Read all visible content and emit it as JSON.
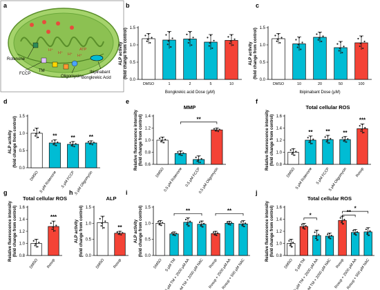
{
  "figure": {
    "panel_a": {
      "letter": "a",
      "labels": {
        "rotenone": "Rotenone",
        "fccp": "FCCP",
        "tm": "TM",
        "oligomycin": "Oligomycin",
        "ibipinabant": "Ibipinabant",
        "bongkrekic": "Bongkrekic Acid",
        "h1": "H⁺",
        "h2": "H⁺",
        "h3": "H⁺",
        "h4": "H⁺",
        "atp": "ATP"
      }
    }
  },
  "colors": {
    "cyan": "#00bcd4",
    "red": "#f44336",
    "white": "#ffffff",
    "organelle": "#8cc152",
    "organelle_dark": "#5a8f2a"
  },
  "chart_data": [
    {
      "id": "b",
      "letter": "b",
      "type": "bar",
      "title": "",
      "ylabel": [
        "ALP activity",
        "(fold change from control)"
      ],
      "xlabel": "Bongkrekic acid Dose (μM)",
      "ylim": [
        0,
        1.5
      ],
      "yticks": [
        0.0,
        0.5,
        1.0,
        1.5
      ],
      "tick_decimals": 1,
      "categories": [
        "DMSO",
        "1",
        "2",
        "5",
        "10"
      ],
      "values": [
        1.18,
        1.14,
        1.17,
        1.08,
        1.13
      ],
      "errors": [
        0.15,
        0.25,
        0.22,
        0.22,
        0.17
      ],
      "colors": [
        "white",
        "cyan",
        "cyan",
        "cyan",
        "red"
      ],
      "rotate_labels": false,
      "significance": [
        "",
        "",
        "",
        "",
        ""
      ],
      "brackets": []
    },
    {
      "id": "c",
      "letter": "c",
      "type": "bar",
      "title": "",
      "ylabel": [
        "ALP activity",
        "(fold change from control)"
      ],
      "xlabel": "Ibipinabant Dose (μM)",
      "ylim": [
        0,
        1.5
      ],
      "yticks": [
        0.0,
        0.5,
        1.0,
        1.5
      ],
      "tick_decimals": 1,
      "categories": [
        "DMSO",
        "10",
        "20",
        "50",
        "100"
      ],
      "values": [
        1.18,
        1.03,
        1.22,
        0.92,
        1.06
      ],
      "errors": [
        0.15,
        0.2,
        0.15,
        0.18,
        0.2
      ],
      "colors": [
        "white",
        "cyan",
        "cyan",
        "cyan",
        "red"
      ],
      "rotate_labels": false,
      "significance": [
        "",
        "",
        "",
        "",
        ""
      ],
      "brackets": []
    },
    {
      "id": "d",
      "letter": "d",
      "type": "bar",
      "title": "",
      "ylabel": [
        "ALP activity",
        "(fold change from control)"
      ],
      "xlabel": "",
      "ylim": [
        0,
        1.5
      ],
      "yticks": [
        0.0,
        0.5,
        1.0,
        1.5
      ],
      "tick_decimals": 1,
      "categories": [
        "DMSO",
        ".5 μM Rotenone",
        ".5 μM FCCP",
        ".5 μM Oligomycin"
      ],
      "values": [
        1.0,
        0.72,
        0.68,
        0.72
      ],
      "errors": [
        0.15,
        0.09,
        0.08,
        0.06
      ],
      "colors": [
        "white",
        "cyan",
        "cyan",
        "cyan"
      ],
      "rotate_labels": true,
      "significance": [
        "",
        "**",
        "**",
        "**"
      ],
      "brackets": []
    },
    {
      "id": "e",
      "letter": "e",
      "type": "bar",
      "title": "MMP",
      "ylabel": [
        "Relative fluorescence intensity",
        "(fold change from control)"
      ],
      "xlabel": "",
      "ylim": [
        0.6,
        1.4
      ],
      "yticks": [
        0.6,
        0.8,
        1.0,
        1.2,
        1.4
      ],
      "tick_decimals": 1,
      "categories": [
        "DMSO",
        "0.5 μM Rotenone",
        "0.5 μM FCCP",
        "0.5 μM Oligomycin"
      ],
      "values": [
        1.0,
        0.78,
        0.68,
        1.17
      ],
      "errors": [
        0.05,
        0.04,
        0.06,
        0.03
      ],
      "colors": [
        "white",
        "cyan",
        "cyan",
        "red"
      ],
      "rotate_labels": true,
      "significance": [
        "",
        "",
        "",
        ""
      ],
      "brackets": [
        {
          "from": 1,
          "to": 3,
          "level": 1.3,
          "label": "**"
        }
      ]
    },
    {
      "id": "f",
      "letter": "f",
      "type": "bar",
      "title": "Total cellular ROS",
      "ylabel": [
        "Relative fluorescence intensity",
        "(fold change from control)"
      ],
      "xlabel": "",
      "ylim": [
        0.8,
        1.6
      ],
      "yticks": [
        0.8,
        1.0,
        1.2,
        1.4,
        1.6
      ],
      "tick_decimals": 1,
      "categories": [
        "DMSO",
        "5 μM Rotenone",
        "5 μM FCCP",
        "5 μM Oligomycin",
        "Rosup"
      ],
      "values": [
        1.0,
        1.2,
        1.21,
        1.21,
        1.39
      ],
      "errors": [
        0.06,
        0.07,
        0.07,
        0.05,
        0.08
      ],
      "colors": [
        "white",
        "cyan",
        "cyan",
        "cyan",
        "red"
      ],
      "rotate_labels": true,
      "significance": [
        "",
        "**",
        "**",
        "**",
        "***"
      ],
      "brackets": []
    },
    {
      "id": "g",
      "letter": "g",
      "type": "bar",
      "title": "Total cellular ROS",
      "ylabel": [
        "Relative fluorescence intensity",
        "(fold change from control)"
      ],
      "xlabel": "",
      "ylim": [
        0.8,
        1.6
      ],
      "yticks": [
        0.8,
        1.0,
        1.2,
        1.4,
        1.6
      ],
      "tick_decimals": 1,
      "categories": [
        "DMSO",
        "Rosup"
      ],
      "values": [
        1.0,
        1.28
      ],
      "errors": [
        0.07,
        0.09
      ],
      "colors": [
        "white",
        "red"
      ],
      "rotate_labels": true,
      "significance": [
        "",
        "***"
      ],
      "brackets": []
    },
    {
      "id": "h",
      "letter": "h",
      "type": "bar",
      "title": "ALP",
      "ylabel": [
        "ALP activity",
        "(fold change from control)"
      ],
      "xlabel": "",
      "ylim": [
        0,
        1.5
      ],
      "yticks": [
        0.0,
        0.5,
        1.0,
        1.5
      ],
      "tick_decimals": 1,
      "categories": [
        "DMSO",
        "Rosup"
      ],
      "values": [
        1.02,
        0.69
      ],
      "errors": [
        0.2,
        0.06
      ],
      "colors": [
        "white",
        "red"
      ],
      "rotate_labels": true,
      "significance": [
        "",
        "**"
      ],
      "brackets": []
    },
    {
      "id": "i",
      "letter": "i",
      "type": "bar",
      "title": "",
      "ylabel": [
        "ALP activity",
        "(fold change from control)"
      ],
      "xlabel": "",
      "ylim": [
        0,
        1.5
      ],
      "yticks": [
        0.0,
        0.5,
        1.0,
        1.5
      ],
      "tick_decimals": 1,
      "categories": [
        "DMSO",
        "5 μM TM",
        "5 μM TM + 2000 μM AA",
        "5 μM TM + 2000 μM NAC",
        "Rosup",
        "Rosup + 2000 μM AA",
        "Rosup + 500 μM NAC"
      ],
      "values": [
        1.0,
        0.67,
        1.03,
        0.97,
        0.68,
        1.0,
        0.98
      ],
      "errors": [
        0.08,
        0.06,
        0.14,
        0.1,
        0.07,
        0.06,
        0.1
      ],
      "colors": [
        "white",
        "cyan",
        "cyan",
        "cyan",
        "red",
        "cyan",
        "cyan"
      ],
      "rotate_labels": true,
      "significance": [
        "",
        "",
        "",
        "",
        "",
        "",
        ""
      ],
      "brackets": [
        {
          "from": 1,
          "to": 3,
          "level": 1.3,
          "label": "**"
        },
        {
          "from": 4,
          "to": 6,
          "level": 1.3,
          "label": "**"
        }
      ]
    },
    {
      "id": "j",
      "letter": "j",
      "type": "bar",
      "title": "Total cellular ROS",
      "ylabel": [
        "Relative fluorescence intensity",
        "(fold change from control)"
      ],
      "xlabel": "",
      "ylim": [
        0.8,
        1.6
      ],
      "yticks": [
        0.8,
        1.0,
        1.2,
        1.4,
        1.6
      ],
      "tick_decimals": 1,
      "categories": [
        "DMSO",
        "5 μM TM",
        "5 μM TM + 2000 μM AA",
        "5 μM TM + 2000 μM NAC",
        "Rosup",
        "Rosup + 2000 μM AA",
        "Rosup + 500 μM NAC"
      ],
      "values": [
        1.0,
        1.28,
        1.13,
        1.12,
        1.38,
        1.18,
        1.19
      ],
      "errors": [
        0.07,
        0.05,
        0.09,
        0.05,
        0.07,
        0.05,
        0.07
      ],
      "colors": [
        "white",
        "red",
        "cyan",
        "cyan",
        "red",
        "cyan",
        "cyan"
      ],
      "rotate_labels": true,
      "significance": [
        "",
        "",
        "",
        "",
        "",
        "",
        ""
      ],
      "brackets": [
        {
          "from": 1,
          "to": 2,
          "level": 1.42,
          "label": "*"
        },
        {
          "from": 4,
          "to": 5,
          "level": 1.47,
          "label": "**"
        },
        {
          "from": 4,
          "to": 6,
          "level": 1.53,
          "label": "*"
        }
      ]
    }
  ]
}
